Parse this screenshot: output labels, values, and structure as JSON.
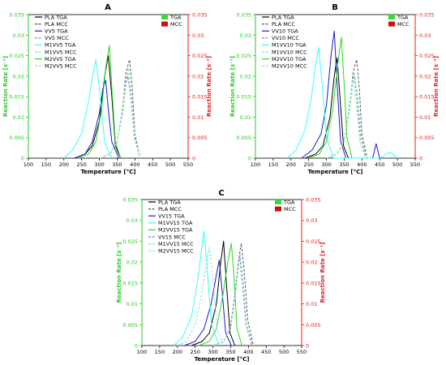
{
  "chart_data": [
    {
      "type": "line",
      "panel": "A",
      "xlabel": "Temperature [°C]",
      "ylabel_left": "Reaction Rate [s⁻¹]",
      "ylabel_right": "Reaction Rate [s⁻¹]",
      "xlim": [
        100,
        550
      ],
      "ylim": [
        0,
        0.035
      ],
      "x_ticks": [
        "100",
        "150",
        "200",
        "250",
        "300",
        "350",
        "400",
        "450",
        "500",
        "550"
      ],
      "y_ticks": [
        "0",
        "0.005",
        "0.01",
        "0.015",
        "0.02",
        "0.025",
        "0.03",
        "0.035"
      ],
      "legend_left": [
        "PLA TGA",
        "PLA MCC",
        "VV5 TGA",
        "VV5 MCC",
        "M1VV5 TGA",
        "M1VV5 MCC",
        "M2VV5 TGA",
        "M2VV5 MCC"
      ],
      "legend_right": [
        "TGA",
        "MCC"
      ],
      "series": [
        {
          "name": "PLA TGA",
          "color": "#000000",
          "dash": "solid",
          "peak": [
            325,
            0.025
          ],
          "x": [
            230,
            260,
            280,
            300,
            315,
            325,
            335,
            345,
            360
          ],
          "y": [
            0,
            0.001,
            0.003,
            0.009,
            0.02,
            0.025,
            0.015,
            0.003,
            0
          ]
        },
        {
          "name": "PLA MCC",
          "color": "#555555",
          "dash": "dash",
          "peak": [
            385,
            0.024
          ],
          "x": [
            300,
            330,
            350,
            365,
            375,
            385,
            392,
            400,
            415
          ],
          "y": [
            0,
            0.001,
            0.004,
            0.012,
            0.021,
            0.024,
            0.018,
            0.006,
            0
          ]
        },
        {
          "name": "VV5 TGA",
          "color": "#1a1acc",
          "dash": "solid",
          "peak": [
            318,
            0.019
          ],
          "x": [
            230,
            260,
            280,
            300,
            310,
            318,
            325,
            335,
            355
          ],
          "y": [
            0,
            0.001,
            0.004,
            0.011,
            0.017,
            0.019,
            0.012,
            0.004,
            0
          ]
        },
        {
          "name": "VV5 MCC",
          "color": "#7a7aee",
          "dash": "dash",
          "peak": [
            380,
            0.02
          ],
          "x": [
            300,
            330,
            350,
            365,
            375,
            380,
            388,
            398,
            415
          ],
          "y": [
            0,
            0.001,
            0.004,
            0.011,
            0.018,
            0.02,
            0.015,
            0.005,
            0
          ]
        },
        {
          "name": "M1VV5 TGA",
          "color": "#33ffff",
          "dash": "solid",
          "peak": [
            290,
            0.024
          ],
          "x": [
            200,
            225,
            250,
            270,
            283,
            290,
            300,
            315,
            335
          ],
          "y": [
            0,
            0.002,
            0.006,
            0.014,
            0.021,
            0.024,
            0.017,
            0.004,
            0
          ]
        },
        {
          "name": "M1VV5 MCC",
          "color": "#88dddd",
          "dash": "dash",
          "peak": [
            380,
            0.021
          ],
          "x": [
            300,
            330,
            350,
            365,
            375,
            380,
            388,
            398,
            415
          ],
          "y": [
            0,
            0.001,
            0.004,
            0.012,
            0.019,
            0.021,
            0.016,
            0.005,
            0
          ]
        },
        {
          "name": "M2VV5 TGA",
          "color": "#22dd22",
          "dash": "solid",
          "peak": [
            328,
            0.0275
          ],
          "x": [
            240,
            270,
            290,
            305,
            318,
            328,
            336,
            345,
            360
          ],
          "y": [
            0,
            0.001,
            0.004,
            0.011,
            0.022,
            0.0275,
            0.016,
            0.004,
            0
          ]
        },
        {
          "name": "M2VV5 MCC",
          "color": "#88ee88",
          "dash": "dash",
          "peak": [
            382,
            0.022
          ],
          "x": [
            300,
            330,
            350,
            365,
            375,
            382,
            390,
            400,
            415
          ],
          "y": [
            0,
            0.001,
            0.004,
            0.012,
            0.019,
            0.022,
            0.016,
            0.005,
            0
          ]
        }
      ]
    },
    {
      "type": "line",
      "panel": "B",
      "xlabel": "Temperature [°C]",
      "ylabel_left": "Reaction Rate [s⁻¹]",
      "ylabel_right": "Reaction Rate [s⁻¹]",
      "xlim": [
        100,
        550
      ],
      "ylim": [
        0,
        0.035
      ],
      "x_ticks": [
        "100",
        "150",
        "200",
        "250",
        "300",
        "350",
        "400",
        "450",
        "500",
        "550"
      ],
      "y_ticks": [
        "0",
        "0.005",
        "0.01",
        "0.015",
        "0.02",
        "0.025",
        "0.03",
        "0.035"
      ],
      "legend_left": [
        "PLA TGA",
        "PLA MCC",
        "VV10 TGA",
        "VV10 MCC",
        "M1VV10 TGA",
        "M1VV10 MCC",
        "M2VV10 TGA",
        "M2VV10 MCC"
      ],
      "legend_right": [
        "TGA",
        "MCC"
      ],
      "series": [
        {
          "name": "PLA TGA",
          "color": "#000000",
          "dash": "solid",
          "peak": [
            330,
            0.0245
          ],
          "x": [
            240,
            270,
            290,
            310,
            322,
            330,
            338,
            348,
            362
          ],
          "y": [
            0,
            0.001,
            0.003,
            0.01,
            0.02,
            0.0245,
            0.015,
            0.003,
            0
          ]
        },
        {
          "name": "PLA MCC",
          "color": "#555555",
          "dash": "dash",
          "peak": [
            385,
            0.024
          ],
          "x": [
            300,
            330,
            350,
            365,
            375,
            385,
            392,
            400,
            415
          ],
          "y": [
            0,
            0.001,
            0.004,
            0.012,
            0.021,
            0.024,
            0.018,
            0.006,
            0
          ]
        },
        {
          "name": "VV10 TGA",
          "color": "#1a1acc",
          "dash": "solid",
          "peak": [
            322,
            0.031
          ],
          "x": [
            230,
            260,
            285,
            300,
            313,
            322,
            330,
            340,
            355,
            430,
            440,
            450
          ],
          "y": [
            0,
            0.002,
            0.006,
            0.013,
            0.025,
            0.031,
            0.018,
            0.004,
            0,
            0,
            0.0035,
            0
          ]
        },
        {
          "name": "VV10 MCC",
          "color": "#7a7aee",
          "dash": "dash",
          "peak": [
            378,
            0.0205
          ],
          "x": [
            300,
            330,
            350,
            362,
            372,
            378,
            386,
            396,
            412
          ],
          "y": [
            0,
            0.001,
            0.004,
            0.011,
            0.018,
            0.0205,
            0.015,
            0.005,
            0
          ]
        },
        {
          "name": "M1VV10 TGA",
          "color": "#33ffff",
          "dash": "solid",
          "peak": [
            278,
            0.027
          ],
          "x": [
            190,
            215,
            240,
            258,
            270,
            278,
            288,
            300,
            320,
            450,
            480,
            500
          ],
          "y": [
            0,
            0.002,
            0.007,
            0.015,
            0.023,
            0.027,
            0.018,
            0.005,
            0,
            0,
            0.0015,
            0
          ]
        },
        {
          "name": "M1VV10 MCC",
          "color": "#88dddd",
          "dash": "dash",
          "peak": [
            375,
            0.0195
          ],
          "x": [
            300,
            330,
            350,
            362,
            370,
            375,
            384,
            394,
            410
          ],
          "y": [
            0,
            0.001,
            0.004,
            0.011,
            0.017,
            0.0195,
            0.014,
            0.004,
            0
          ]
        },
        {
          "name": "M2VV10 TGA",
          "color": "#22dd22",
          "dash": "solid",
          "peak": [
            342,
            0.0295
          ],
          "x": [
            250,
            280,
            300,
            318,
            332,
            342,
            350,
            358,
            372
          ],
          "y": [
            0,
            0.001,
            0.004,
            0.012,
            0.023,
            0.0295,
            0.018,
            0.005,
            0
          ]
        },
        {
          "name": "M2VV10 MCC",
          "color": "#88ee88",
          "dash": "dash",
          "peak": [
            380,
            0.02
          ],
          "x": [
            300,
            330,
            350,
            364,
            374,
            380,
            388,
            398,
            414
          ],
          "y": [
            0,
            0.001,
            0.004,
            0.011,
            0.018,
            0.02,
            0.015,
            0.005,
            0
          ]
        }
      ]
    },
    {
      "type": "line",
      "panel": "C",
      "xlabel": "Temperature [°C]",
      "ylabel_left": "Reaction Rate [s⁻¹]",
      "ylabel_right": "Reaction Rate [s⁻¹]",
      "xlim": [
        100,
        550
      ],
      "ylim": [
        0,
        0.035
      ],
      "x_ticks": [
        "100",
        "150",
        "200",
        "250",
        "300",
        "350",
        "400",
        "450",
        "500",
        "550"
      ],
      "y_ticks": [
        "0",
        "0.005",
        "0.01",
        "0.015",
        "0.02",
        "0.025",
        "0.03",
        "0.035"
      ],
      "legend_left": [
        "PLA TGA",
        "PLA MCC",
        "VV15 TGA",
        "M1VV15 TGA",
        "M2VV15 TGA",
        "VV15 MCC",
        "M1VV15 MCC",
        "M2VV15 MCC"
      ],
      "legend_right": [
        "TGA",
        "MCC"
      ],
      "series": [
        {
          "name": "PLA TGA",
          "color": "#000000",
          "dash": "solid",
          "peak": [
            330,
            0.025
          ],
          "x": [
            240,
            270,
            290,
            310,
            322,
            330,
            338,
            348,
            362
          ],
          "y": [
            0,
            0.001,
            0.003,
            0.01,
            0.02,
            0.025,
            0.015,
            0.003,
            0
          ]
        },
        {
          "name": "PLA MCC",
          "color": "#555555",
          "dash": "dash",
          "peak": [
            380,
            0.0245
          ],
          "x": [
            300,
            330,
            350,
            363,
            373,
            380,
            388,
            398,
            414
          ],
          "y": [
            0,
            0.001,
            0.004,
            0.012,
            0.021,
            0.0245,
            0.018,
            0.006,
            0
          ]
        },
        {
          "name": "VV15 TGA",
          "color": "#1a1acc",
          "dash": "solid",
          "peak": [
            318,
            0.0205
          ],
          "x": [
            220,
            250,
            275,
            295,
            310,
            318,
            326,
            336,
            352
          ],
          "y": [
            0,
            0.001,
            0.004,
            0.01,
            0.017,
            0.0205,
            0.013,
            0.003,
            0
          ]
        },
        {
          "name": "M1VV15 TGA",
          "color": "#33ffff",
          "dash": "solid",
          "peak": [
            275,
            0.0275
          ],
          "x": [
            190,
            215,
            240,
            256,
            268,
            275,
            284,
            296,
            318
          ],
          "y": [
            0,
            0.002,
            0.007,
            0.015,
            0.023,
            0.0275,
            0.018,
            0.005,
            0
          ]
        },
        {
          "name": "M2VV15 TGA",
          "color": "#22dd22",
          "dash": "solid",
          "peak": [
            352,
            0.0245
          ],
          "x": [
            260,
            290,
            310,
            328,
            342,
            352,
            360,
            368,
            382
          ],
          "y": [
            0,
            0.001,
            0.004,
            0.012,
            0.02,
            0.0245,
            0.016,
            0.004,
            0
          ]
        },
        {
          "name": "VV15 MCC",
          "color": "#7a7aee",
          "dash": "dash",
          "peak": [
            375,
            0.0215
          ],
          "x": [
            300,
            330,
            348,
            360,
            369,
            375,
            383,
            393,
            410
          ],
          "y": [
            0,
            0.001,
            0.004,
            0.011,
            0.018,
            0.0215,
            0.015,
            0.005,
            0
          ]
        },
        {
          "name": "M1VV15 MCC",
          "color": "#88dddd",
          "dash": "dash",
          "peak": [
            290,
            0.0235
          ],
          "x": [
            200,
            225,
            250,
            268,
            282,
            290,
            300,
            312,
            330
          ],
          "y": [
            0,
            0.001,
            0.005,
            0.012,
            0.02,
            0.0235,
            0.016,
            0.004,
            0
          ]
        },
        {
          "name": "M2VV15 MCC",
          "color": "#88ee88",
          "dash": "dash",
          "peak": [
            377,
            0.022
          ],
          "x": [
            300,
            330,
            350,
            362,
            371,
            377,
            385,
            395,
            412
          ],
          "y": [
            0,
            0.001,
            0.004,
            0.011,
            0.018,
            0.022,
            0.016,
            0.005,
            0
          ]
        }
      ]
    }
  ]
}
